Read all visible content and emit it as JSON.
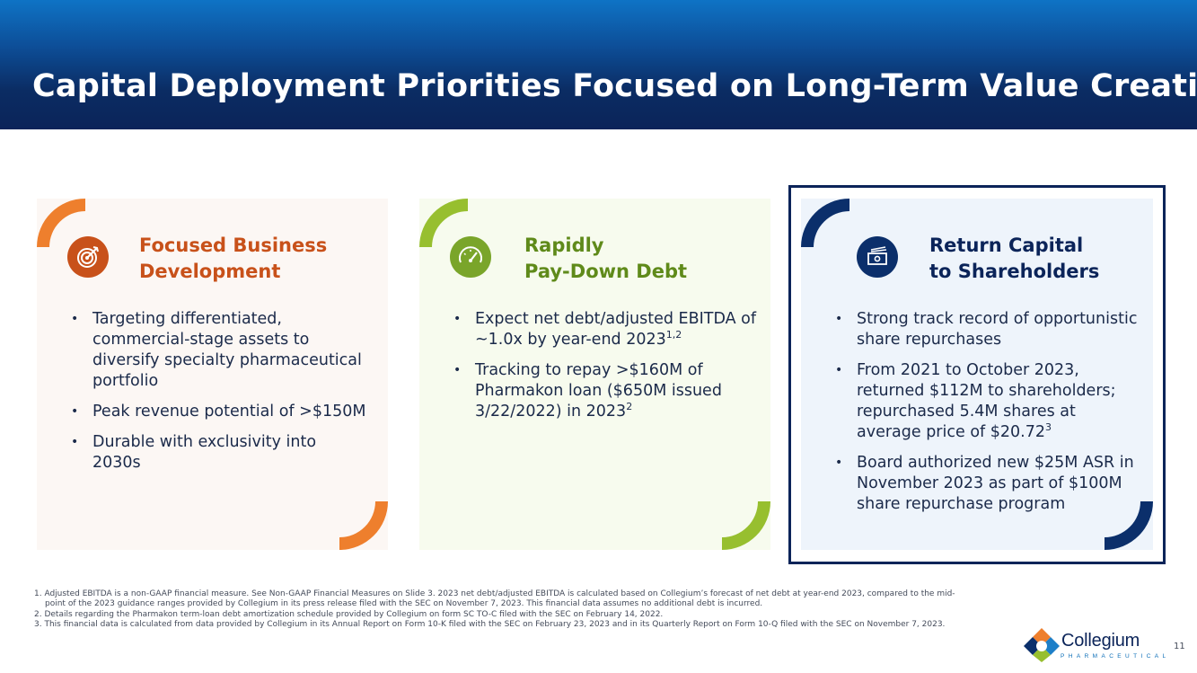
{
  "slide": {
    "title": "Capital Deployment Priorities Focused on Long-Term Value Creation",
    "page_number": "11"
  },
  "cards": [
    {
      "title_line1": "Focused Business",
      "title_line2": "Development",
      "icon": "target-icon",
      "accent": "#c8511a",
      "bullets": [
        {
          "text": "Targeting differentiated, commercial-stage assets to diversify specialty pharmaceutical portfolio"
        },
        {
          "text": "Peak revenue potential of >$150M"
        },
        {
          "text": "Durable with exclusivity into 2030s"
        }
      ]
    },
    {
      "title_line1": "Rapidly",
      "title_line2": "Pay-Down Debt",
      "icon": "gauge-icon",
      "accent": "#7aa52a",
      "bullets": [
        {
          "text": "Expect net debt/adjusted EBITDA of ~1.0x by year-end 2023",
          "sup": "1,2"
        },
        {
          "text": "Tracking to repay >$160M of Pharmakon loan ($650M issued 3/22/2022) in 2023",
          "sup": "2"
        }
      ]
    },
    {
      "title_line1": "Return Capital",
      "title_line2": "to Shareholders",
      "icon": "money-icon",
      "accent": "#0b2459",
      "bullets": [
        {
          "text": "Strong track record of opportunistic share repurchases"
        },
        {
          "text": "From 2021 to October 2023, returned $112M to shareholders; repurchased 5.4M shares at average price of $20.72",
          "sup": "3"
        },
        {
          "text": "Board authorized new $25M ASR in November 2023 as part of $100M share repurchase program"
        }
      ]
    }
  ],
  "footnotes": [
    "1. Adjusted EBITDA is a non-GAAP financial measure. See Non-GAAP Financial Measures on Slide 3. 2023 net debt/adjusted EBITDA is calculated based on Collegium’s forecast of net debt at year-end 2023, compared to the mid-point of the 2023 guidance ranges provided by Collegium in its press release filed with the SEC on November 7, 2023. This financial data assumes no additional debt is incurred.",
    "2. Details regarding the Pharmakon term-loan debt amortization schedule provided by Collegium on form SC TO-C filed with the SEC on February 14, 2022.",
    "3. This financial data is calculated from data provided by Collegium in its Annual Report on Form 10-K filed with the SEC on February 23, 2023 and in its Quarterly Report on Form 10-Q filed with the SEC on November 7, 2023."
  ],
  "logo": {
    "name": "Collegium",
    "tagline": "PHARMACEUTICAL"
  }
}
